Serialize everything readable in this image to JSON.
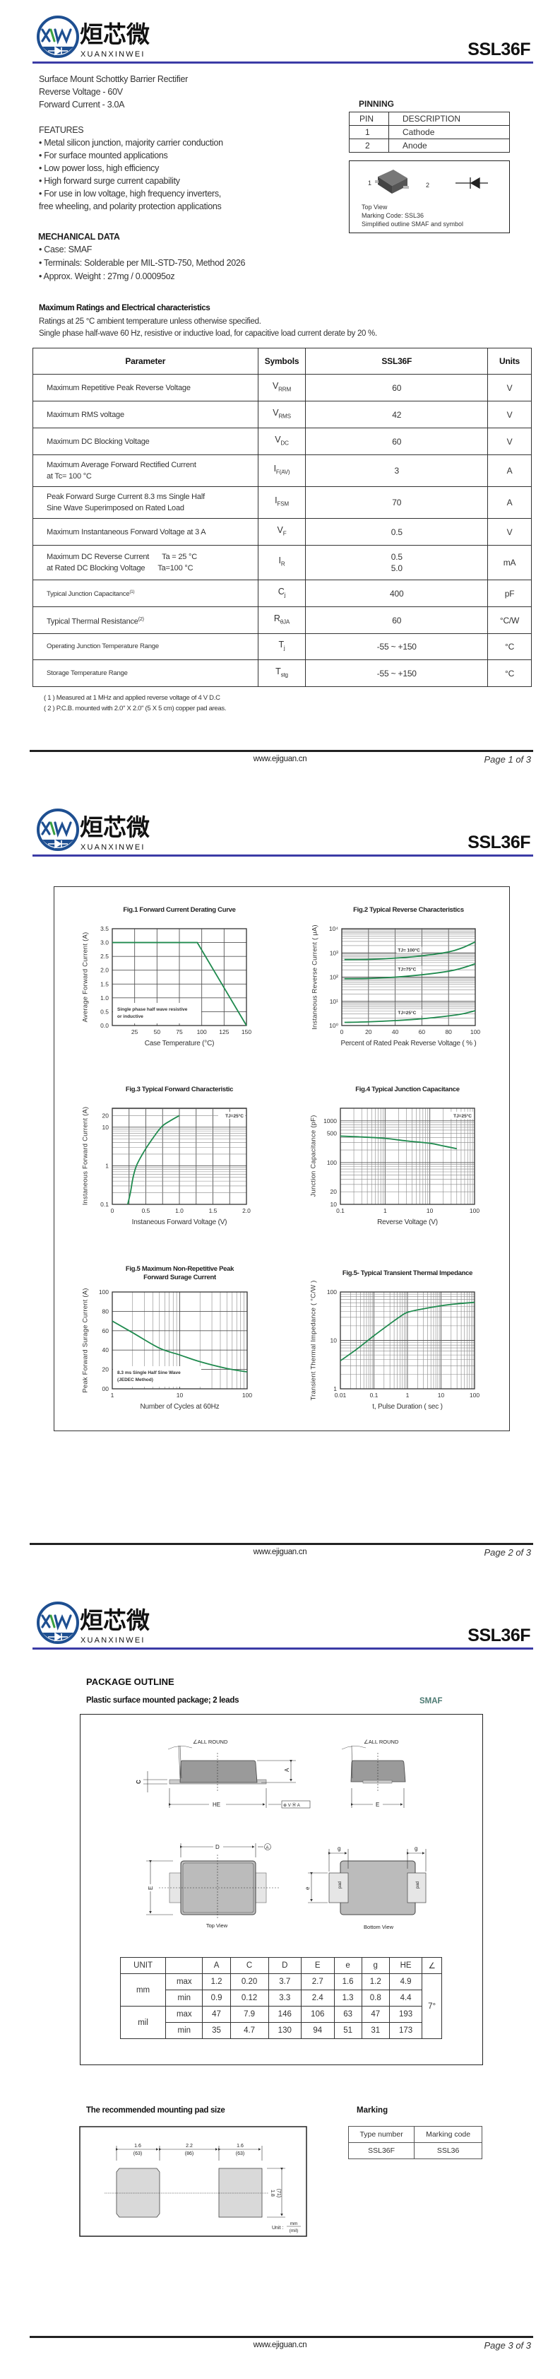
{
  "header": {
    "brand_cn": "烜芯微",
    "brand_en": "XUANXINWEI",
    "logo_letters": "XW",
    "part": "SSL36F",
    "brand_color": "#1e4f91",
    "rule_color": "#3b3ba6"
  },
  "footer": {
    "website": "www.ejiguan.cn",
    "pages": [
      "Page  1  of  3",
      "Page  2  of  3",
      "Page  3  of  3"
    ]
  },
  "page1": {
    "intro": [
      "Surface Mount Schottky Barrier Rectifier",
      "Reverse Voltage - 60V",
      "Forward Current - 3.0A"
    ],
    "features_title": "FEATURES",
    "features": [
      "• Metal silicon junction, majority carrier conduction",
      "• For surface mounted applications",
      "• Low power loss, high efficiency",
      "• High forward surge current capability",
      "• For use in low voltage, high frequency inverters,",
      "   free wheeling, and polarity protection applications"
    ],
    "mech_title": "MECHANICAL DATA",
    "mech": [
      "• Case: SMAF",
      "• Terminals: Solderable per MIL-STD-750, Method 2026",
      "• Approx. Weight : 27mg  /  0.00095oz"
    ],
    "pinning": {
      "title": "PINNING",
      "headers": [
        "PIN",
        "DESCRIPTION"
      ],
      "rows": [
        [
          "1",
          "Cathode"
        ],
        [
          "2",
          "Anode"
        ]
      ],
      "pin_labels": [
        "1",
        "2"
      ],
      "captions": [
        "Top View",
        "Marking Code: SSL36",
        "Simplified outline SMAF and symbol"
      ]
    },
    "ratings": {
      "title": "Maximum Ratings and Electrical characteristics",
      "notes_top": [
        "Ratings at 25 °C ambient temperature unless otherwise specified.",
        "Single phase half-wave 60 Hz, resistive or inductive load, for capacitive load current derate by 20 %."
      ],
      "columns": [
        "Parameter",
        "Symbols",
        "SSL36F",
        "Units"
      ],
      "rows": [
        {
          "param": [
            "Maximum Repetitive Peak Reverse Voltage"
          ],
          "symbol": "V",
          "sub": "RRM",
          "value": [
            "60"
          ],
          "unit": "V"
        },
        {
          "param": [
            "Maximum RMS voltage"
          ],
          "symbol": "V",
          "sub": "RMS",
          "value": [
            "42"
          ],
          "unit": "V"
        },
        {
          "param": [
            "Maximum DC Blocking Voltage"
          ],
          "symbol": "V",
          "sub": "DC",
          "value": [
            "60"
          ],
          "unit": "V"
        },
        {
          "param": [
            "Maximum Average Forward Rectified Current",
            "at Tc= 100 °C"
          ],
          "symbol": "I",
          "sub": "F(AV)",
          "value": [
            "3"
          ],
          "unit": "A"
        },
        {
          "param": [
            "Peak Forward Surge Current 8.3 ms Single Half",
            "Sine Wave Superimposed on Rated Load"
          ],
          "symbol": "I",
          "sub": "FSM",
          "value": [
            "70"
          ],
          "unit": "A"
        },
        {
          "param": [
            "Maximum Instantaneous Forward Voltage at 3 A"
          ],
          "symbol": "V",
          "sub": "F",
          "value": [
            "0.5"
          ],
          "unit": "V"
        },
        {
          "param": [
            "Maximum DC Reverse Current",
            "at Rated DC Blocking Voltage"
          ],
          "cond": [
            "Ta = 25 °C",
            "Ta=100 °C"
          ],
          "symbol": "I",
          "sub": "R",
          "value": [
            "0.5",
            "5.0"
          ],
          "unit": "mA"
        },
        {
          "param": [
            "Typical Junction Capacitance"
          ],
          "note": "(1)",
          "symbol": "C",
          "sub": "j",
          "value": [
            "400"
          ],
          "unit": "pF"
        },
        {
          "param": [
            "Typical Thermal Resistance"
          ],
          "note": "(2)",
          "symbol": "R",
          "sub": "θJA",
          "value": [
            "60"
          ],
          "unit": "°C/W"
        },
        {
          "param": [
            "Operating Junction Temperature Range"
          ],
          "symbol": "T",
          "sub": "j",
          "value": [
            "-55 ~ +150"
          ],
          "unit": "°C"
        },
        {
          "param": [
            "Storage Temperature Range"
          ],
          "symbol": "T",
          "sub": "stg",
          "value": [
            "-55 ~ +150"
          ],
          "unit": "°C"
        }
      ],
      "footnotes": [
        "( 1 ) Measured at 1 MHz and applied reverse voltage of 4 V D.C",
        "( 2 ) P.C.B. mounted with 2.0\" X 2.0\" (5 X 5 cm) copper pad areas."
      ]
    }
  },
  "chart_data": [
    {
      "type": "line",
      "title": "Fig.1  Forward Current Derating Curve",
      "xlabel": "Case  Temperature (°C)",
      "ylabel": "Average Forward Current (A)",
      "xscale": "linear",
      "yscale": "linear",
      "xlim": [
        0,
        150
      ],
      "ylim": [
        0,
        3.5
      ],
      "grid": true,
      "xticks": [
        [
          25,
          "25"
        ],
        [
          50,
          "50"
        ],
        [
          75,
          "75"
        ],
        [
          100,
          "100"
        ],
        [
          125,
          "125"
        ],
        [
          150,
          "150"
        ]
      ],
      "yticks": [
        [
          0,
          "0.0"
        ],
        [
          0.5,
          "0.5"
        ],
        [
          1,
          "1.0"
        ],
        [
          1.5,
          "1.5"
        ],
        [
          2,
          "2.0"
        ],
        [
          2.5,
          "2.5"
        ],
        [
          3,
          "3.0"
        ],
        [
          3.5,
          "3.5"
        ]
      ],
      "annotation": [
        "Single phase half wave resistive",
        "or inductive"
      ],
      "series": [
        {
          "points": [
            [
              0,
              3.0
            ],
            [
              95,
              3.0
            ],
            [
              150,
              0
            ]
          ]
        }
      ],
      "color": "#1f8a4e"
    },
    {
      "type": "line",
      "title": "Fig.2  Typical Reverse Characteristics",
      "xlabel": "Percent of Rated Peak Reverse Voltage ( % )",
      "ylabel": "Instaneous Reverse Current ( μA)",
      "xscale": "linear",
      "yscale": "log",
      "xlim": [
        0,
        100
      ],
      "ylim": [
        1,
        10000
      ],
      "grid": true,
      "xticks": [
        [
          0,
          "0"
        ],
        [
          20,
          "20"
        ],
        [
          40,
          "40"
        ],
        [
          60,
          "60"
        ],
        [
          80,
          "80"
        ],
        [
          100,
          "100"
        ]
      ],
      "yticks": [
        [
          1,
          "10⁰"
        ],
        [
          10,
          "10¹"
        ],
        [
          100,
          "10²"
        ],
        [
          1000,
          "10³"
        ],
        [
          10000,
          "10⁴"
        ]
      ],
      "series": [
        {
          "name": "TJ= 100°C",
          "points": [
            [
              2,
              530
            ],
            [
              20,
              540
            ],
            [
              40,
              610
            ],
            [
              60,
              760
            ],
            [
              80,
              1100
            ],
            [
              90,
              1600
            ],
            [
              100,
              2850
            ]
          ]
        },
        {
          "name": "TJ=75°C",
          "points": [
            [
              2,
              86
            ],
            [
              20,
              88
            ],
            [
              40,
              100
            ],
            [
              60,
              125
            ],
            [
              80,
              175
            ],
            [
              90,
              235
            ],
            [
              100,
              355
            ]
          ]
        },
        {
          "name": "TJ=25°C",
          "points": [
            [
              2,
              1.35
            ],
            [
              20,
              1.42
            ],
            [
              40,
              1.6
            ],
            [
              60,
              1.9
            ],
            [
              80,
              2.5
            ],
            [
              90,
              3.0
            ],
            [
              100,
              4.1
            ]
          ]
        }
      ],
      "color": "#1f8a4e"
    },
    {
      "type": "line",
      "title": "Fig.3  Typical Forward Characteristic",
      "xlabel": "Instaneous Forward Voltage (V)",
      "ylabel": "Instaneous Forward Current  (A)",
      "xscale": "linear",
      "yscale": "log",
      "xlim": [
        0,
        2.0
      ],
      "ylim": [
        0.1,
        31
      ],
      "grid": true,
      "xticks": [
        [
          0,
          "0"
        ],
        [
          0.5,
          "0.5"
        ],
        [
          1.0,
          "1.0"
        ],
        [
          1.5,
          "1.5"
        ],
        [
          2.0,
          "2.0"
        ]
      ],
      "yticks": [
        [
          0.1,
          "0.1"
        ],
        [
          1,
          "1"
        ],
        [
          10,
          "10"
        ],
        [
          20,
          "20"
        ]
      ],
      "annotation": [
        "TJ=25°C"
      ],
      "series": [
        {
          "points": [
            [
              0.23,
              0.1
            ],
            [
              0.27,
              0.2
            ],
            [
              0.31,
              0.5
            ],
            [
              0.36,
              1
            ],
            [
              0.45,
              2
            ],
            [
              0.56,
              4
            ],
            [
              0.73,
              10
            ],
            [
              0.86,
              14.5
            ],
            [
              1.0,
              20
            ]
          ]
        }
      ],
      "color": "#1f8a4e"
    },
    {
      "type": "line",
      "title": "Fig.4  Typical Junction Capacitance",
      "xlabel": "Reverse  Voltage (V)",
      "ylabel": "Junction Capacitance (pF)",
      "xscale": "log",
      "yscale": "log",
      "xlim": [
        0.1,
        100
      ],
      "ylim": [
        10,
        2000
      ],
      "grid": true,
      "xticks": [
        [
          0.1,
          "0.1"
        ],
        [
          1,
          "1"
        ],
        [
          10,
          "10"
        ],
        [
          100,
          "100"
        ]
      ],
      "yticks": [
        [
          10,
          "10"
        ],
        [
          20,
          "20"
        ],
        [
          100,
          "100"
        ],
        [
          500,
          "500"
        ],
        [
          1000,
          "1000"
        ]
      ],
      "annotation": [
        "TJ=25°C"
      ],
      "series": [
        {
          "points": [
            [
              0.1,
              430
            ],
            [
              0.3,
              410
            ],
            [
              1,
              380
            ],
            [
              3,
              330
            ],
            [
              10,
              290
            ],
            [
              20,
              250
            ],
            [
              40,
              215
            ]
          ]
        }
      ],
      "color": "#1f8a4e"
    },
    {
      "type": "line",
      "title": "Fig.5  Maximum Non-Repetitive Peak\nForward Surage Current",
      "xlabel": "Number of Cycles at 60Hz",
      "ylabel": "Peak Forward Surage Current (A)",
      "xscale": "log",
      "yscale": "linear",
      "xlim": [
        1,
        100
      ],
      "ylim": [
        0,
        100
      ],
      "grid": true,
      "xticks": [
        [
          1,
          "1"
        ],
        [
          10,
          "10"
        ],
        [
          100,
          "100"
        ]
      ],
      "yticks": [
        [
          0,
          "00"
        ],
        [
          20,
          "20"
        ],
        [
          40,
          "40"
        ],
        [
          60,
          "60"
        ],
        [
          80,
          "80"
        ],
        [
          100,
          "100"
        ]
      ],
      "annotation": [
        "8.3 ms Single Half Sine Wave",
        "(JEDEC Method)"
      ],
      "series": [
        {
          "points": [
            [
              1,
              70
            ],
            [
              2,
              58
            ],
            [
              5,
              42
            ],
            [
              10,
              35
            ],
            [
              20,
              28
            ],
            [
              50,
              21
            ],
            [
              100,
              17.5
            ]
          ]
        }
      ],
      "color": "#1f8a4e"
    },
    {
      "type": "line",
      "title": "Fig.5- Typical Transient Thermal Impedance",
      "xlabel": "t, Pulse Duration ( sec )",
      "ylabel": "Transient Thermal Impedance ( °C/W )",
      "xscale": "log",
      "yscale": "log",
      "xlim": [
        0.01,
        100
      ],
      "ylim": [
        1,
        100
      ],
      "grid": true,
      "xticks": [
        [
          0.01,
          "0.01"
        ],
        [
          0.1,
          "0.1"
        ],
        [
          1,
          "1"
        ],
        [
          10,
          "10"
        ],
        [
          100,
          "100"
        ]
      ],
      "yticks": [
        [
          1,
          "1"
        ],
        [
          10,
          "10"
        ],
        [
          100,
          "100"
        ]
      ],
      "series": [
        {
          "points": [
            [
              0.01,
              3.8
            ],
            [
              0.03,
              6.5
            ],
            [
              0.1,
              12.5
            ],
            [
              0.3,
              22
            ],
            [
              0.6,
              31
            ],
            [
              1,
              38
            ],
            [
              3,
              45
            ],
            [
              10,
              52
            ],
            [
              30,
              57
            ],
            [
              100,
              61
            ]
          ]
        }
      ],
      "color": "#1f8a4e"
    }
  ],
  "page3": {
    "title": "PACKAGE  OUTLINE",
    "subtitle": "Plastic surface mounted package; 2 leads",
    "package": "SMAF",
    "package_color": "#4d7a73",
    "drawing_labels": {
      "all_round": "∠ALL ROUND",
      "A": "A",
      "C": "C",
      "HE": "HE",
      "E": "E",
      "D": "D",
      "g": "g",
      "e": "e",
      "pad": "pad",
      "datum": "A",
      "gdt": "⊕ V Ⓜ A",
      "top_view": "Top View",
      "bottom_view": "Bottom View"
    },
    "dims": {
      "header": [
        "UNIT",
        "",
        "A",
        "C",
        "D",
        "E",
        "e",
        "g",
        "HE",
        "∠"
      ],
      "groups": [
        {
          "unit": "mm",
          "rows": [
            [
              "max",
              "1.2",
              "0.20",
              "3.7",
              "2.7",
              "1.6",
              "1.2",
              "4.9"
            ],
            [
              "min",
              "0.9",
              "0.12",
              "3.3",
              "2.4",
              "1.3",
              "0.8",
              "4.4"
            ]
          ]
        },
        {
          "unit": "mil",
          "rows": [
            [
              "max",
              "47",
              "7.9",
              "146",
              "106",
              "63",
              "47",
              "193"
            ],
            [
              "min",
              "35",
              "4.7",
              "130",
              "94",
              "51",
              "31",
              "173"
            ]
          ]
        }
      ],
      "angle": "7°"
    },
    "pad_title": "The recommended mounting pad size",
    "pad_dims": [
      [
        "1.6",
        "(63)"
      ],
      [
        "2.2",
        "(86)"
      ],
      [
        "1.6",
        "(63)"
      ]
    ],
    "pad_height": [
      "1.8",
      "(71)"
    ],
    "pad_unit": {
      "label": "Unit :",
      "top": "mm",
      "bottom": "(mil)"
    },
    "marking": {
      "title": "Marking",
      "headers": [
        "Type number",
        "Marking code"
      ],
      "row": [
        "SSL36F",
        "SSL36"
      ]
    }
  }
}
